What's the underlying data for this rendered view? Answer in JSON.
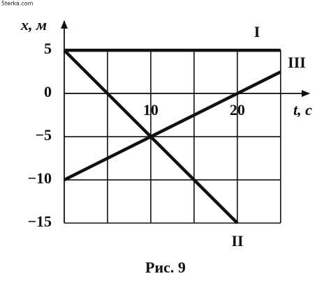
{
  "watermark": "5terka.com",
  "chart_data": {
    "type": "line",
    "ylabel": "x, м",
    "xlabel": "t, с",
    "caption": "Рис. 9",
    "x": [
      0,
      20,
      25
    ],
    "series": [
      {
        "name": "I",
        "color": "#111111",
        "values": [
          5,
          5,
          5
        ]
      },
      {
        "name": "II",
        "color": "#111111",
        "values": [
          5,
          -15,
          null
        ]
      },
      {
        "name": "III",
        "color": "#111111",
        "values": [
          -10,
          0,
          2.5
        ]
      }
    ],
    "xlim": [
      0,
      28
    ],
    "ylim": [
      -15,
      8
    ],
    "xticks": [
      10,
      20
    ],
    "yticks": [
      5,
      0,
      {
        "value": -5,
        "label": "−5"
      },
      {
        "value": -10,
        "label": "−10"
      },
      {
        "value": -15,
        "label": "−15"
      }
    ],
    "xgrid": [
      5,
      10,
      15,
      20,
      25
    ],
    "grid": true
  }
}
